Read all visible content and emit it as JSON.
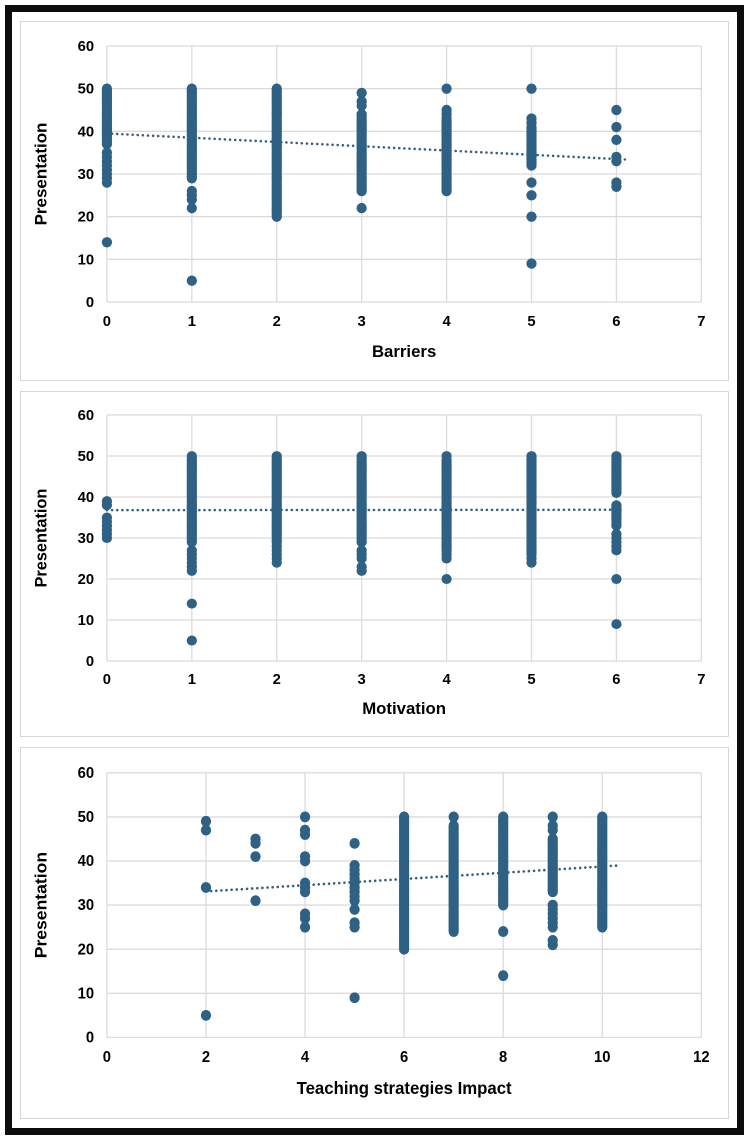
{
  "page": {
    "background": "#ffffff",
    "frame_border_color": "#0d0d0d"
  },
  "colors": {
    "marker": "#2E6183",
    "trend": "#2E6183",
    "grid": "#DBDBDB",
    "panel_border": "#D6D6D6",
    "axis_text": "#000000"
  },
  "encoding_note": "points[].ys entries are y-values; a [lo,hi] pair denotes a dense vertical run of overlapping markers at 0.5 steps",
  "chart_data": [
    {
      "type": "scatter",
      "title": "",
      "xlabel": "Barriers",
      "ylabel": "Presentation",
      "xlim": [
        0,
        7
      ],
      "ylim": [
        0,
        60
      ],
      "xticks": [
        0,
        1,
        2,
        3,
        4,
        5,
        6,
        7
      ],
      "yticks": [
        0,
        10,
        20,
        30,
        40,
        50,
        60
      ],
      "grid": true,
      "legend": false,
      "marker_color": "#2E6183",
      "points": [
        {
          "x": 0,
          "ys": [
            [
              37,
              50
            ],
            35,
            34,
            33,
            32,
            31,
            30,
            29,
            28,
            14
          ]
        },
        {
          "x": 1,
          "ys": [
            [
              29,
              50
            ],
            26,
            25,
            24,
            22,
            5
          ]
        },
        {
          "x": 2,
          "ys": [
            [
              20,
              50
            ]
          ]
        },
        {
          "x": 3,
          "ys": [
            49,
            47,
            46,
            [
              26,
              44
            ],
            22
          ]
        },
        {
          "x": 4,
          "ys": [
            50,
            45,
            44,
            [
              26,
              43
            ]
          ]
        },
        {
          "x": 5,
          "ys": [
            50,
            43,
            42,
            [
              32,
              41
            ],
            28,
            25,
            20,
            9
          ]
        },
        {
          "x": 6,
          "ys": [
            45,
            41,
            38,
            34,
            33,
            28,
            27
          ]
        }
      ],
      "trendline": {
        "style": "dotted",
        "from": [
          0,
          39.5
        ],
        "to": [
          6.1,
          33.4
        ]
      }
    },
    {
      "type": "scatter",
      "title": "",
      "xlabel": "Motivation",
      "ylabel": "Presentation",
      "xlim": [
        0,
        7
      ],
      "ylim": [
        0,
        60
      ],
      "xticks": [
        0,
        1,
        2,
        3,
        4,
        5,
        6,
        7
      ],
      "yticks": [
        0,
        10,
        20,
        30,
        40,
        50,
        60
      ],
      "grid": true,
      "legend": false,
      "marker_color": "#2E6183",
      "points": [
        {
          "x": 0,
          "ys": [
            39,
            38,
            35,
            34,
            33,
            32,
            31,
            30
          ]
        },
        {
          "x": 1,
          "ys": [
            [
              29,
              50
            ],
            27,
            26,
            25,
            24,
            23,
            22,
            14,
            5
          ]
        },
        {
          "x": 2,
          "ys": [
            [
              29,
              50
            ],
            28,
            27,
            26,
            25,
            24
          ]
        },
        {
          "x": 3,
          "ys": [
            [
              29,
              50
            ],
            27,
            26,
            25,
            23,
            22
          ]
        },
        {
          "x": 4,
          "ys": [
            50,
            [
              27,
              49
            ],
            26,
            25,
            20
          ]
        },
        {
          "x": 5,
          "ys": [
            [
              26,
              50
            ],
            25,
            24
          ]
        },
        {
          "x": 6,
          "ys": [
            [
              41,
              50
            ],
            [
              33,
              38
            ],
            31,
            30,
            29,
            28,
            27,
            20,
            9
          ]
        }
      ],
      "trendline": {
        "style": "dotted",
        "from": [
          0,
          36.8
        ],
        "to": [
          6.05,
          36.9
        ]
      }
    },
    {
      "type": "scatter",
      "title": "",
      "xlabel": "Teaching strategies Impact",
      "ylabel": "Presentation",
      "xlim": [
        0,
        12
      ],
      "ylim": [
        0,
        60
      ],
      "xticks": [
        0,
        2,
        4,
        6,
        8,
        10,
        12
      ],
      "yticks": [
        0,
        10,
        20,
        30,
        40,
        50,
        60
      ],
      "grid": true,
      "legend": false,
      "marker_color": "#2E6183",
      "points": [
        {
          "x": 2,
          "ys": [
            49,
            47,
            34,
            5
          ]
        },
        {
          "x": 3,
          "ys": [
            45,
            44,
            41,
            31
          ]
        },
        {
          "x": 4,
          "ys": [
            50,
            47,
            46,
            41,
            40,
            35,
            34,
            33,
            28,
            27,
            25
          ]
        },
        {
          "x": 5,
          "ys": [
            44,
            39,
            38,
            37,
            36,
            35,
            34,
            33,
            32,
            31,
            29,
            26,
            25,
            9
          ]
        },
        {
          "x": 6,
          "ys": [
            [
              20,
              50
            ]
          ]
        },
        {
          "x": 7,
          "ys": [
            50,
            [
              24,
              48
            ]
          ]
        },
        {
          "x": 8,
          "ys": [
            [
              30,
              50
            ],
            24,
            14
          ]
        },
        {
          "x": 9,
          "ys": [
            50,
            48,
            47,
            [
              33,
              45
            ],
            30,
            29,
            28,
            27,
            26,
            25,
            22,
            21
          ]
        },
        {
          "x": 10,
          "ys": [
            [
              25,
              50
            ]
          ]
        }
      ],
      "trendline": {
        "style": "dotted",
        "from": [
          2,
          33.1
        ],
        "to": [
          10.35,
          39
        ]
      }
    }
  ]
}
